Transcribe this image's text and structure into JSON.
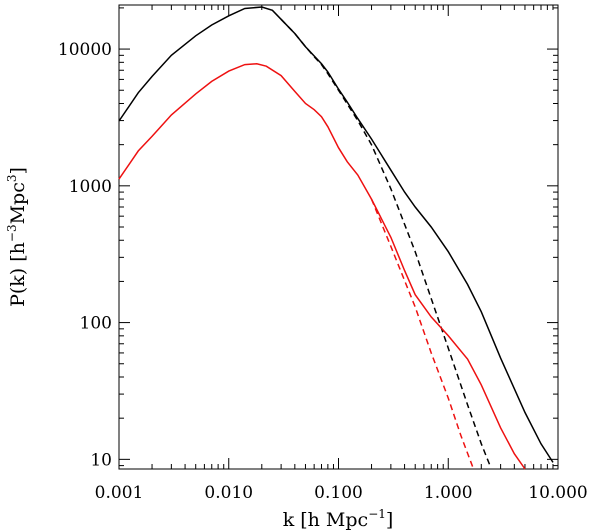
{
  "chart_data": {
    "type": "line",
    "title": "",
    "xlabel": "k [h Mpc⁻¹]",
    "ylabel": "P(k) [h⁻³Mpc³]",
    "xscale": "log",
    "yscale": "log",
    "xlim": [
      0.001,
      10.0
    ],
    "ylim": [
      8.5,
      21000
    ],
    "xticks": [
      0.001,
      0.01,
      0.1,
      1.0,
      10.0
    ],
    "xtick_labels": [
      "0.001",
      "0.010",
      "0.100",
      "1.000",
      "10.000"
    ],
    "yticks": [
      10,
      100,
      1000,
      10000
    ],
    "ytick_labels": [
      "10",
      "100",
      "1000",
      "10000"
    ],
    "grid": false,
    "legend": "none",
    "series": [
      {
        "color": "#000000",
        "dash": "solid",
        "points": [
          [
            0.001,
            2980
          ],
          [
            0.0015,
            4800
          ],
          [
            0.002,
            6300
          ],
          [
            0.003,
            9000
          ],
          [
            0.005,
            12500
          ],
          [
            0.007,
            15000
          ],
          [
            0.01,
            17500
          ],
          [
            0.014,
            19800
          ],
          [
            0.02,
            20300
          ],
          [
            0.025,
            19200
          ],
          [
            0.03,
            16500
          ],
          [
            0.04,
            13000
          ],
          [
            0.05,
            10400
          ],
          [
            0.06,
            8900
          ],
          [
            0.07,
            7800
          ],
          [
            0.08,
            6800
          ],
          [
            0.1,
            5100
          ],
          [
            0.12,
            4100
          ],
          [
            0.15,
            3100
          ],
          [
            0.2,
            2200
          ],
          [
            0.3,
            1300
          ],
          [
            0.4,
            900
          ],
          [
            0.5,
            700
          ],
          [
            0.7,
            500
          ],
          [
            1.0,
            330
          ],
          [
            1.5,
            190
          ],
          [
            2.0,
            120
          ],
          [
            3.0,
            55
          ],
          [
            5.0,
            22
          ],
          [
            7.0,
            13
          ],
          [
            9.0,
            9.5
          ]
        ]
      },
      {
        "color": "#000000",
        "dash": "dashed",
        "points": [
          [
            0.03,
            16500
          ],
          [
            0.04,
            13000
          ],
          [
            0.05,
            10400
          ],
          [
            0.06,
            8800
          ],
          [
            0.07,
            7700
          ],
          [
            0.08,
            6600
          ],
          [
            0.1,
            5000
          ],
          [
            0.15,
            3000
          ],
          [
            0.2,
            2000
          ],
          [
            0.3,
            950
          ],
          [
            0.5,
            330
          ],
          [
            0.7,
            150
          ],
          [
            1.0,
            65
          ],
          [
            1.5,
            25
          ],
          [
            2.0,
            13
          ],
          [
            2.4,
            9
          ]
        ]
      },
      {
        "color": "#ee1111",
        "dash": "solid",
        "points": [
          [
            0.001,
            1120
          ],
          [
            0.0015,
            1800
          ],
          [
            0.002,
            2300
          ],
          [
            0.003,
            3300
          ],
          [
            0.005,
            4700
          ],
          [
            0.007,
            5800
          ],
          [
            0.01,
            6900
          ],
          [
            0.014,
            7700
          ],
          [
            0.018,
            7800
          ],
          [
            0.022,
            7500
          ],
          [
            0.03,
            6400
          ],
          [
            0.04,
            4900
          ],
          [
            0.05,
            4000
          ],
          [
            0.06,
            3600
          ],
          [
            0.07,
            3200
          ],
          [
            0.08,
            2700
          ],
          [
            0.1,
            1900
          ],
          [
            0.12,
            1500
          ],
          [
            0.15,
            1200
          ],
          [
            0.2,
            800
          ],
          [
            0.3,
            420
          ],
          [
            0.4,
            240
          ],
          [
            0.5,
            160
          ],
          [
            0.7,
            110
          ],
          [
            1.0,
            80
          ],
          [
            1.5,
            54
          ],
          [
            2.0,
            35
          ],
          [
            3.0,
            17
          ],
          [
            4.0,
            11
          ],
          [
            5.0,
            8.5
          ]
        ]
      },
      {
        "color": "#ee1111",
        "dash": "dashed",
        "points": [
          [
            0.2,
            800
          ],
          [
            0.3,
            360
          ],
          [
            0.5,
            130
          ],
          [
            0.7,
            60
          ],
          [
            1.0,
            28
          ],
          [
            1.3,
            15
          ],
          [
            1.7,
            8.5
          ]
        ]
      }
    ]
  }
}
